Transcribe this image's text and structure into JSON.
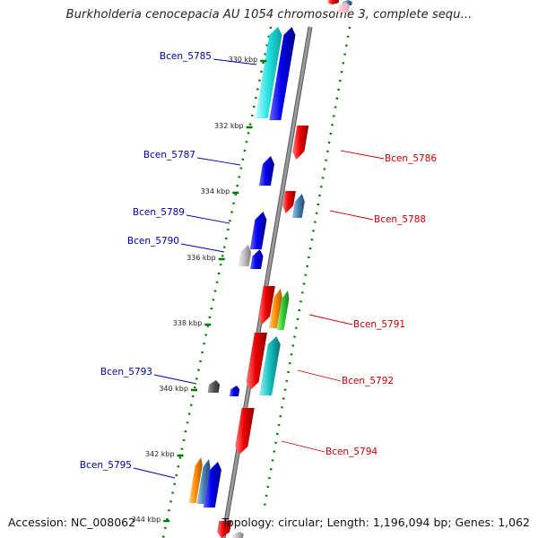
{
  "title": "Burkholderia cenocepacia AU 1054 chromosome 3, complete sequ...",
  "footer": {
    "accession": "Accession: NC_008062",
    "info": "Topology: circular; Length: 1,196,094 bp; Genes: 1,062"
  },
  "ticks": [
    "330 kbp",
    "332 kbp",
    "334 kbp",
    "336 kbp",
    "338 kbp",
    "340 kbp",
    "342 kbp",
    "344 kbp"
  ],
  "genes": {
    "reverse": [
      "Bcen_5785",
      "Bcen_5787",
      "Bcen_5789",
      "Bcen_5790",
      "Bcen_5793",
      "Bcen_5795"
    ],
    "forward": [
      "Bcen_5786",
      "Bcen_5788",
      "Bcen_5791",
      "Bcen_5792",
      "Bcen_5794"
    ]
  },
  "colors": {
    "reverse_label": "#0000aa",
    "forward_label": "#cc0000",
    "dots": "#007a00",
    "backbone": "#8c8c8c"
  }
}
